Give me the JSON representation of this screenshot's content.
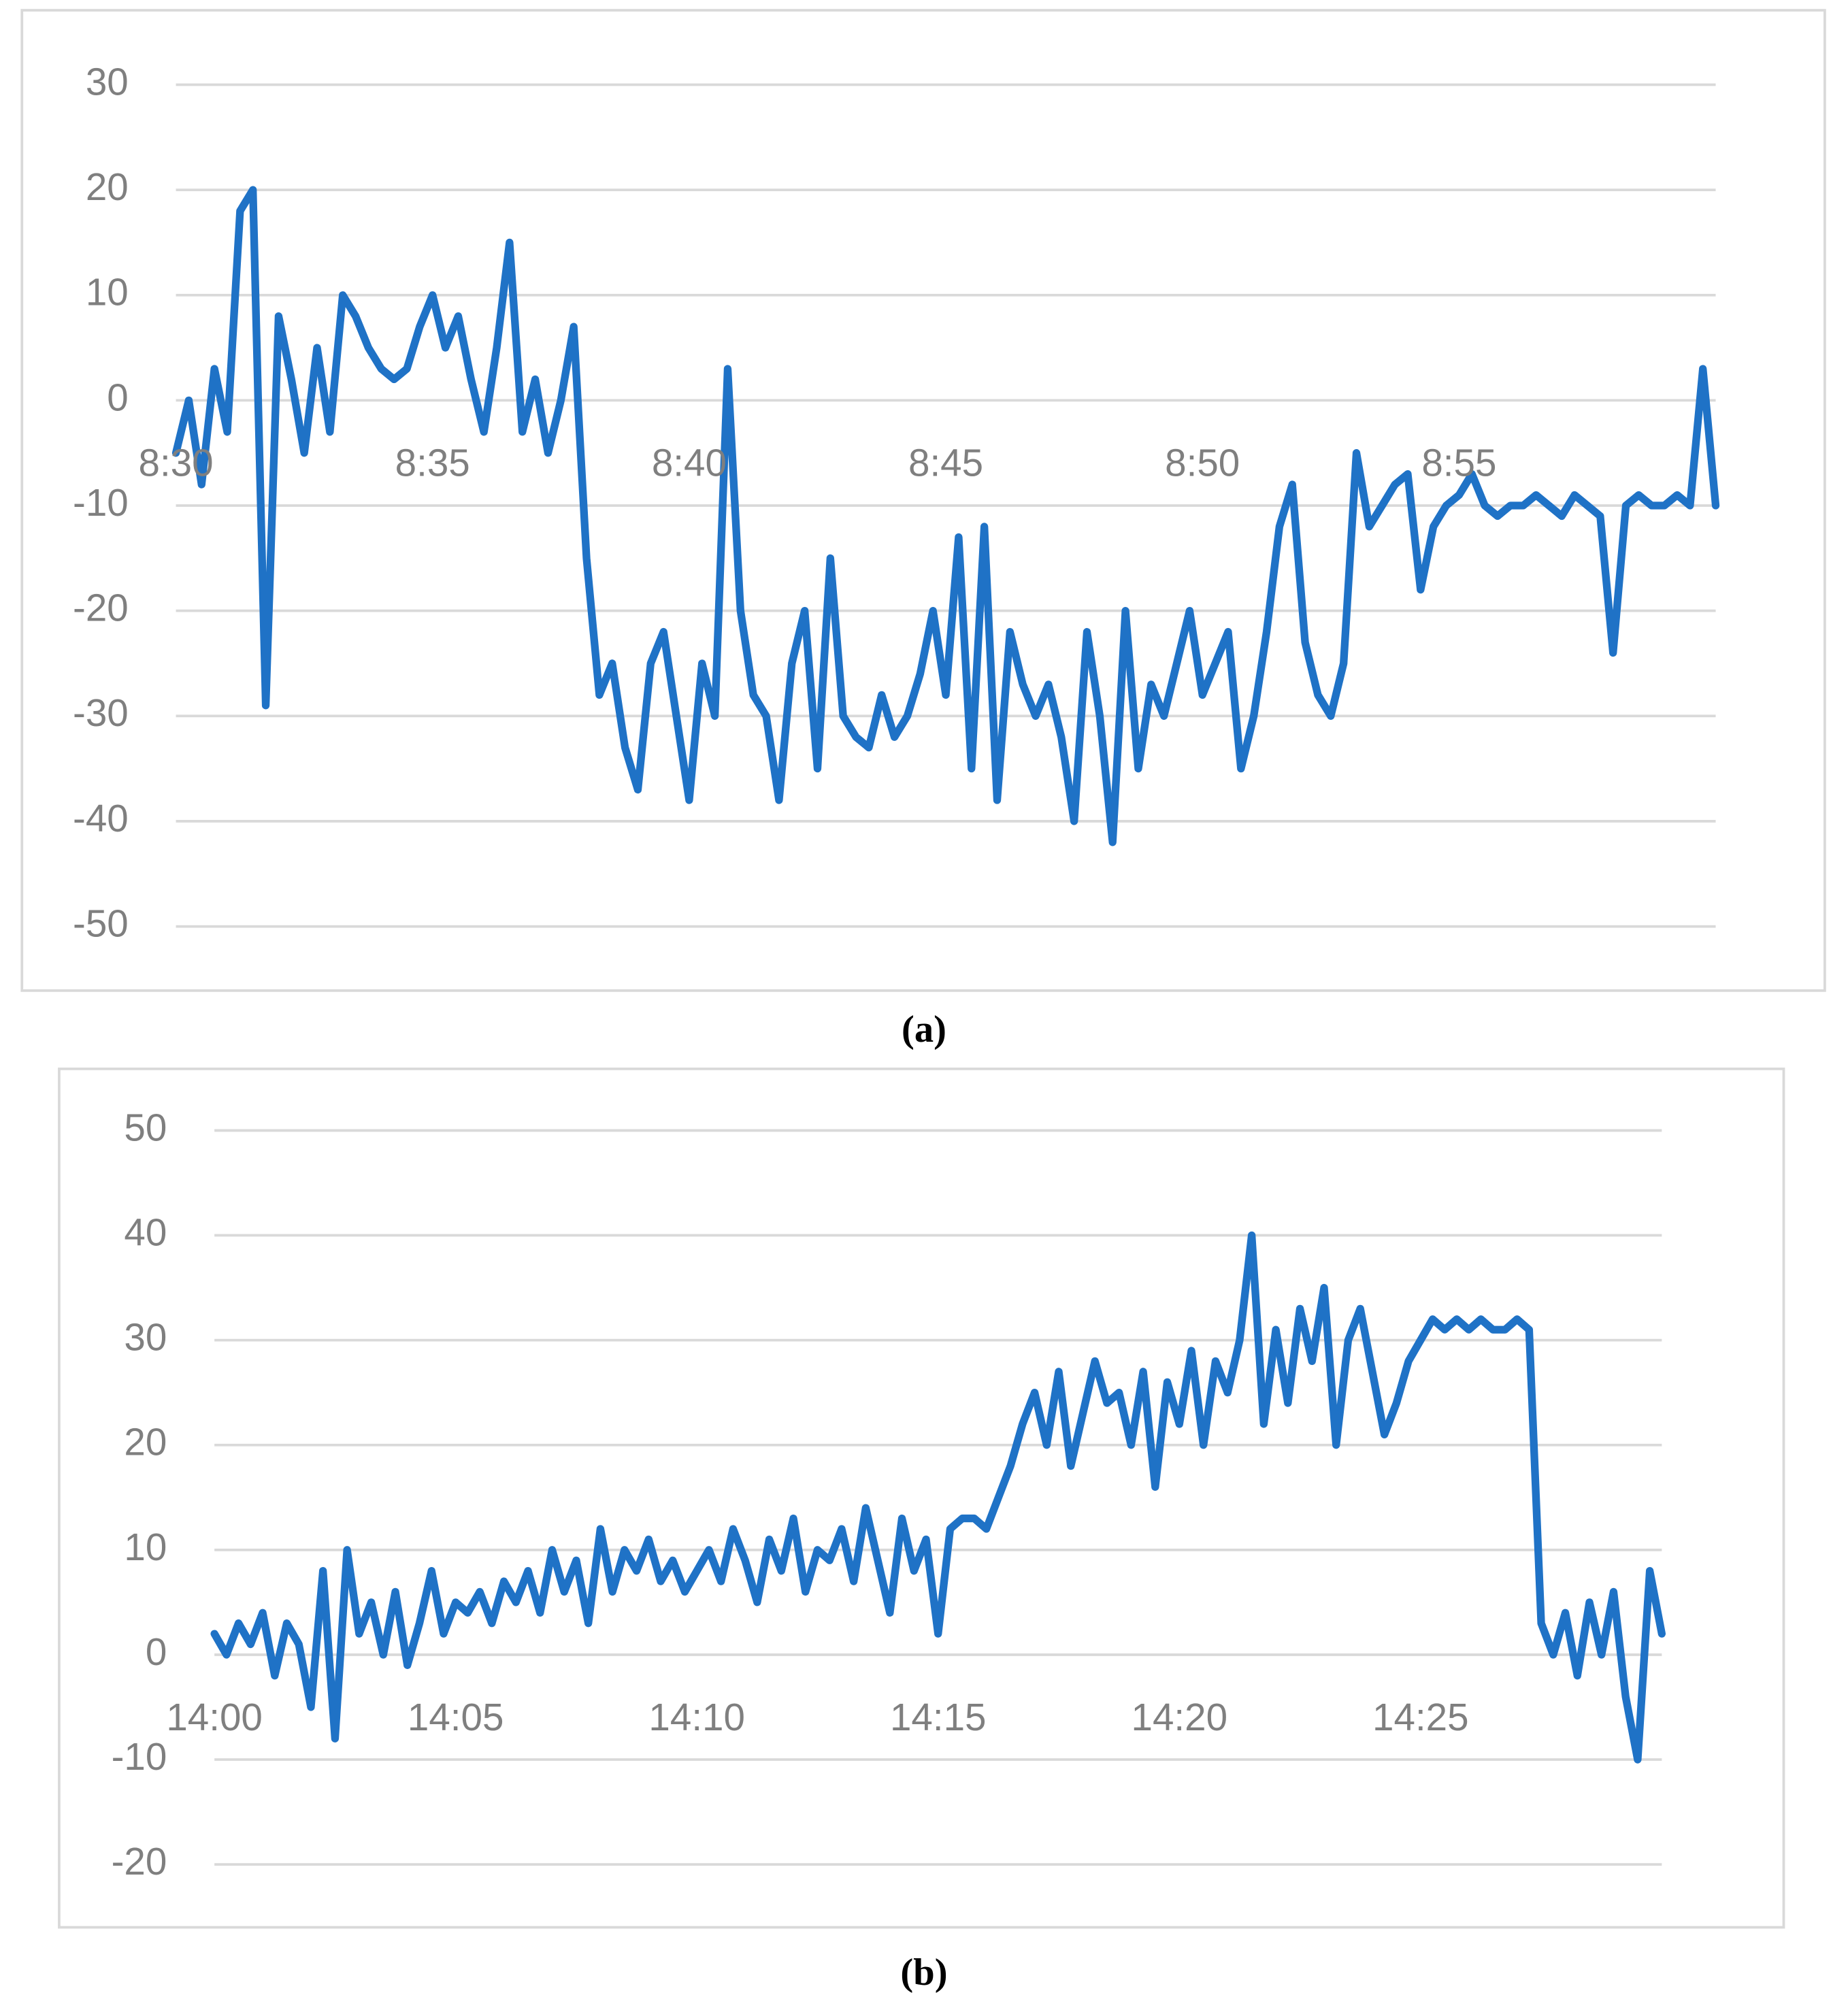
{
  "chart_data": [
    {
      "type": "line",
      "caption": "(a)",
      "color": "#1f72c6",
      "grid": true,
      "ylim": [
        -50,
        30
      ],
      "yticks": [
        -50,
        -40,
        -30,
        -20,
        -10,
        0,
        10,
        20,
        30
      ],
      "categories": [
        "8:30",
        null,
        null,
        null,
        null,
        null,
        null,
        null,
        null,
        null,
        null,
        null,
        null,
        null,
        null,
        null,
        null,
        null,
        null,
        null,
        "8:35",
        null,
        null,
        null,
        null,
        null,
        null,
        null,
        null,
        null,
        null,
        null,
        null,
        null,
        null,
        null,
        null,
        null,
        null,
        null,
        "8:40",
        null,
        null,
        null,
        null,
        null,
        null,
        null,
        null,
        null,
        null,
        null,
        null,
        null,
        null,
        null,
        null,
        null,
        null,
        null,
        "8:45",
        null,
        null,
        null,
        null,
        null,
        null,
        null,
        null,
        null,
        null,
        null,
        null,
        null,
        null,
        null,
        null,
        null,
        null,
        null,
        "8:50",
        null,
        null,
        null,
        null,
        null,
        null,
        null,
        null,
        null,
        null,
        null,
        null,
        null,
        null,
        null,
        null,
        null,
        null,
        null,
        "8:55",
        null,
        null,
        null,
        null,
        null,
        null,
        null,
        null,
        null,
        null,
        null,
        null,
        null,
        null,
        null,
        null,
        null,
        null,
        null,
        null
      ],
      "values": [
        -5,
        0,
        -8,
        3,
        -3,
        18,
        20,
        -29,
        8,
        2,
        -5,
        5,
        -3,
        10,
        8,
        5,
        3,
        2,
        3,
        7,
        10,
        5,
        8,
        2,
        -3,
        5,
        15,
        -3,
        2,
        -5,
        0,
        7,
        -15,
        -28,
        -25,
        -33,
        -37,
        -25,
        -22,
        -30,
        -38,
        -25,
        -30,
        3,
        -20,
        -28,
        -30,
        -38,
        -25,
        -20,
        -35,
        -15,
        -30,
        -32,
        -33,
        -28,
        -32,
        -30,
        -26,
        -20,
        -28,
        -13,
        -35,
        -12,
        -38,
        -22,
        -27,
        -30,
        -27,
        -32,
        -40,
        -22,
        -30,
        -42,
        -20,
        -35,
        -27,
        -30,
        -25,
        -20,
        -28,
        -25,
        -22,
        -35,
        -30,
        -22,
        -12,
        -8,
        -23,
        -28,
        -30,
        -25,
        -5,
        -12,
        -10,
        -8,
        -7,
        -18,
        -12,
        -10,
        -9,
        -7,
        -10,
        -11,
        -10,
        -10,
        -9,
        -10,
        -11,
        -9,
        -10,
        -11,
        -24,
        -10,
        -9,
        -10,
        -10,
        -9,
        -10,
        3,
        -10
      ]
    },
    {
      "type": "line",
      "caption": "(b)",
      "color": "#1f72c6",
      "grid": true,
      "ylim": [
        -20,
        50
      ],
      "yticks": [
        -20,
        -10,
        0,
        10,
        20,
        30,
        40,
        50
      ],
      "categories": [
        "14:00",
        null,
        null,
        null,
        null,
        null,
        null,
        null,
        null,
        null,
        null,
        null,
        null,
        null,
        null,
        null,
        null,
        null,
        null,
        null,
        "14:05",
        null,
        null,
        null,
        null,
        null,
        null,
        null,
        null,
        null,
        null,
        null,
        null,
        null,
        null,
        null,
        null,
        null,
        null,
        null,
        "14:10",
        null,
        null,
        null,
        null,
        null,
        null,
        null,
        null,
        null,
        null,
        null,
        null,
        null,
        null,
        null,
        null,
        null,
        null,
        null,
        "14:15",
        null,
        null,
        null,
        null,
        null,
        null,
        null,
        null,
        null,
        null,
        null,
        null,
        null,
        null,
        null,
        null,
        null,
        null,
        null,
        "14:20",
        null,
        null,
        null,
        null,
        null,
        null,
        null,
        null,
        null,
        null,
        null,
        null,
        null,
        null,
        null,
        null,
        null,
        null,
        null,
        "14:25",
        null,
        null,
        null,
        null,
        null,
        null,
        null,
        null,
        null,
        null,
        null,
        null,
        null,
        null,
        null,
        null,
        null,
        null,
        null,
        null
      ],
      "values": [
        2,
        0,
        3,
        1,
        4,
        -2,
        3,
        1,
        -5,
        8,
        -8,
        10,
        2,
        5,
        0,
        6,
        -1,
        3,
        8,
        2,
        5,
        4,
        6,
        3,
        7,
        5,
        8,
        4,
        10,
        6,
        9,
        3,
        12,
        6,
        10,
        8,
        11,
        7,
        9,
        6,
        8,
        10,
        7,
        12,
        9,
        5,
        11,
        8,
        13,
        6,
        10,
        9,
        12,
        7,
        14,
        9,
        4,
        13,
        8,
        11,
        2,
        12,
        13,
        13,
        12,
        15,
        18,
        22,
        25,
        20,
        27,
        18,
        23,
        28,
        24,
        25,
        20,
        27,
        16,
        26,
        22,
        29,
        20,
        28,
        25,
        30,
        40,
        22,
        31,
        24,
        33,
        28,
        35,
        20,
        30,
        33,
        27,
        21,
        24,
        28,
        30,
        32,
        31,
        32,
        31,
        32,
        31,
        31,
        32,
        31,
        3,
        0,
        4,
        -2,
        5,
        0,
        6,
        -4,
        -10,
        8,
        2
      ]
    }
  ]
}
